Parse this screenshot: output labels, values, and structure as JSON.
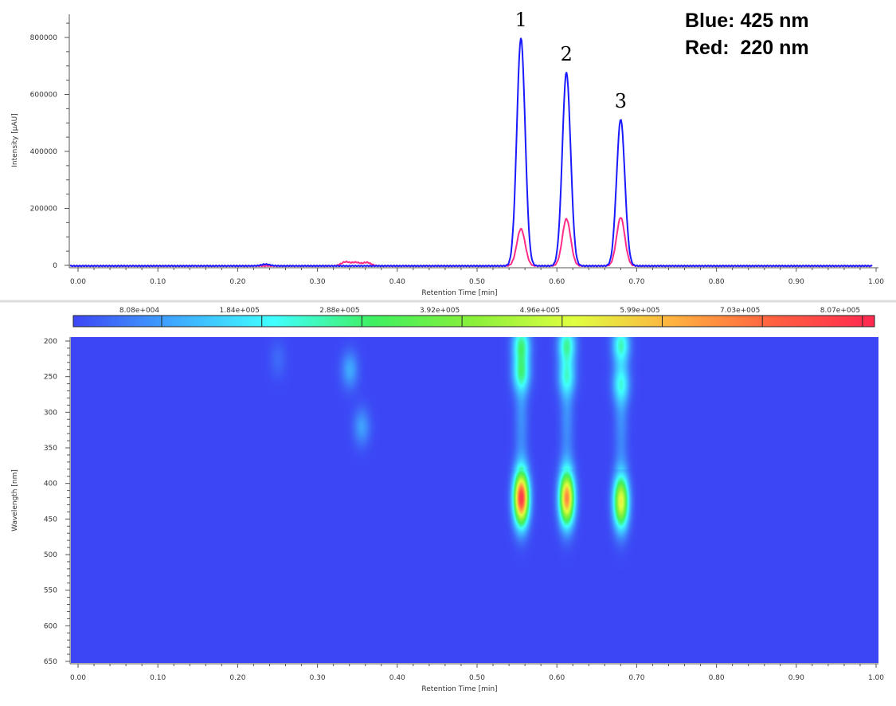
{
  "legend": {
    "blue": "Blue: 425 nm",
    "red": "Red:  220 nm"
  },
  "colors": {
    "blue_trace": "#1a1aff",
    "red_trace": "#ff2d8a",
    "background": "#3c46f5"
  },
  "chart_data": [
    {
      "type": "line",
      "xlabel": "Retention Time [min]",
      "ylabel": "Intensity [µAU]",
      "xlim": [
        0.0,
        1.0
      ],
      "ylim": [
        -20000,
        870000
      ],
      "xticks": [
        "0.00",
        "0.10",
        "0.20",
        "0.30",
        "0.40",
        "0.50",
        "0.60",
        "0.70",
        "0.80",
        "0.90",
        "1.00"
      ],
      "yticks": [
        "0",
        "200000",
        "400000",
        "600000",
        "800000"
      ],
      "peak_labels": [
        {
          "label": "1",
          "x": 0.555,
          "y": 800000
        },
        {
          "label": "2",
          "x": 0.612,
          "y": 680000
        },
        {
          "label": "3",
          "x": 0.68,
          "y": 515000
        }
      ],
      "series": [
        {
          "name": "Blue: 425 nm",
          "color": "#1a1aff",
          "peaks": [
            {
              "x": 0.555,
              "y": 800000
            },
            {
              "x": 0.612,
              "y": 680000
            },
            {
              "x": 0.68,
              "y": 515000
            },
            {
              "x": 0.235,
              "y": 6000
            }
          ]
        },
        {
          "name": "Red:  220 nm",
          "color": "#ff2d8a",
          "peaks": [
            {
              "x": 0.555,
              "y": 130000
            },
            {
              "x": 0.612,
              "y": 165000
            },
            {
              "x": 0.68,
              "y": 170000
            },
            {
              "x": 0.335,
              "y": 14000
            },
            {
              "x": 0.348,
              "y": 12000
            },
            {
              "x": 0.362,
              "y": 12000
            }
          ]
        }
      ]
    },
    {
      "type": "heatmap",
      "xlabel": "Retention Time [min]",
      "ylabel": "Wavelength [nm]",
      "xlim": [
        0.0,
        1.0
      ],
      "ylim": [
        200,
        650
      ],
      "xticks": [
        "0.00",
        "0.10",
        "0.20",
        "0.30",
        "0.40",
        "0.50",
        "0.60",
        "0.70",
        "0.80",
        "0.90",
        "1.00"
      ],
      "yticks": [
        "200",
        "250",
        "300",
        "350",
        "400",
        "450",
        "500",
        "550",
        "600",
        "650"
      ],
      "colorbar_labels": [
        "8.08e+004",
        "1.84e+005",
        "2.88e+005",
        "3.92e+005",
        "4.96e+005",
        "5.99e+005",
        "7.03e+005",
        "8.07e+005"
      ],
      "colorbar_colors": [
        "#3c46f5",
        "#3fa8ff",
        "#40ffff",
        "#3ff060",
        "#8af03a",
        "#e0ff40",
        "#ffb040",
        "#ff6040",
        "#ff2850"
      ],
      "heatmap_spots": [
        {
          "time": 0.555,
          "wavelength": 420,
          "intensity": 830000
        },
        {
          "time": 0.612,
          "wavelength": 420,
          "intensity": 700000
        },
        {
          "time": 0.68,
          "wavelength": 425,
          "intensity": 560000
        },
        {
          "time": 0.555,
          "wavelength": 205,
          "intensity": 260000
        },
        {
          "time": 0.555,
          "wavelength": 245,
          "intensity": 230000
        },
        {
          "time": 0.612,
          "wavelength": 205,
          "intensity": 250000
        },
        {
          "time": 0.612,
          "wavelength": 250,
          "intensity": 180000
        },
        {
          "time": 0.68,
          "wavelength": 205,
          "intensity": 230000
        },
        {
          "time": 0.68,
          "wavelength": 260,
          "intensity": 170000
        },
        {
          "time": 0.34,
          "wavelength": 240,
          "intensity": 110000
        },
        {
          "time": 0.355,
          "wavelength": 320,
          "intensity": 100000
        },
        {
          "time": 0.25,
          "wavelength": 225,
          "intensity": 40000
        }
      ]
    }
  ]
}
